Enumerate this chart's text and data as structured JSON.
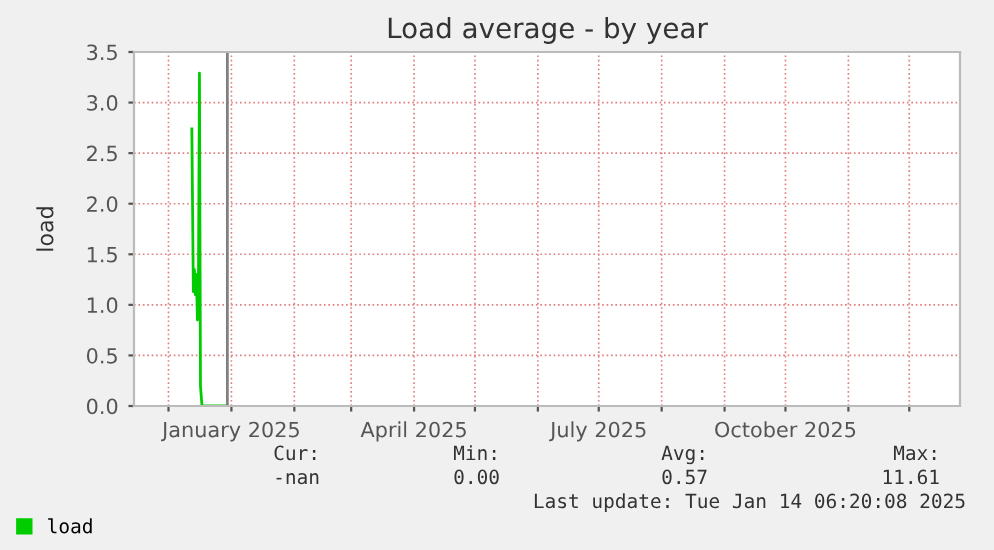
{
  "chart_data": {
    "type": "line",
    "title": "Load average - by year",
    "ylabel": "load",
    "x": [
      "2024-12-12T12:00",
      "2024-12-13T06:00",
      "2024-12-13T18:00",
      "2024-12-14T06:00",
      "2024-12-14T18:00",
      "2024-12-15T06:00",
      "2024-12-15T18:00",
      "2024-12-16T06:00",
      "2024-12-16T18:00",
      "2024-12-17T12:00",
      "2024-12-30T00:00"
    ],
    "series": [
      {
        "name": "load",
        "color": "#00cc00",
        "values": [
          2.74,
          1.13,
          1.35,
          1.1,
          1.3,
          0.85,
          1.2,
          3.29,
          0.2,
          0.0,
          0.0
        ]
      }
    ],
    "xlim": [
      "2024-11-14",
      "2025-12-26"
    ],
    "xticks": [
      {
        "value": "2024-12-01",
        "label": null
      },
      {
        "value": "2025-01-01",
        "label": "January 2025"
      },
      {
        "value": "2025-02-01",
        "label": null
      },
      {
        "value": "2025-03-01",
        "label": null
      },
      {
        "value": "2025-04-01",
        "label": "April 2025"
      },
      {
        "value": "2025-05-01",
        "label": null
      },
      {
        "value": "2025-06-01",
        "label": null
      },
      {
        "value": "2025-07-01",
        "label": "July 2025"
      },
      {
        "value": "2025-08-01",
        "label": null
      },
      {
        "value": "2025-09-01",
        "label": null
      },
      {
        "value": "2025-10-01",
        "label": "October 2025"
      },
      {
        "value": "2025-11-01",
        "label": null
      },
      {
        "value": "2025-12-01",
        "label": null
      }
    ],
    "ylim": [
      0,
      3.5
    ],
    "yticks": [
      {
        "value": 0,
        "label": "0.0"
      },
      {
        "value": 0.5,
        "label": "0.5"
      },
      {
        "value": 1,
        "label": "1.0"
      },
      {
        "value": 1.5,
        "label": "1.5"
      },
      {
        "value": 2,
        "label": "2.0"
      },
      {
        "value": 2.5,
        "label": "2.5"
      },
      {
        "value": 3,
        "label": "3.0"
      },
      {
        "value": 3.5,
        "label": "3.5"
      }
    ],
    "ref_lines": [
      {
        "axis": "x",
        "value": "2024-12-30",
        "color": "#808080",
        "line_style": "solid"
      }
    ],
    "grid": true,
    "legend": "bottom left",
    "marker": "none",
    "line_style": "solid",
    "annotations": [
      "Cur:",
      "Min:",
      "Avg:",
      "Max:",
      "-nan",
      "0.00",
      "0.57",
      "11.61",
      "Last update: Tue Jan 14 06:20:08 2025"
    ]
  }
}
